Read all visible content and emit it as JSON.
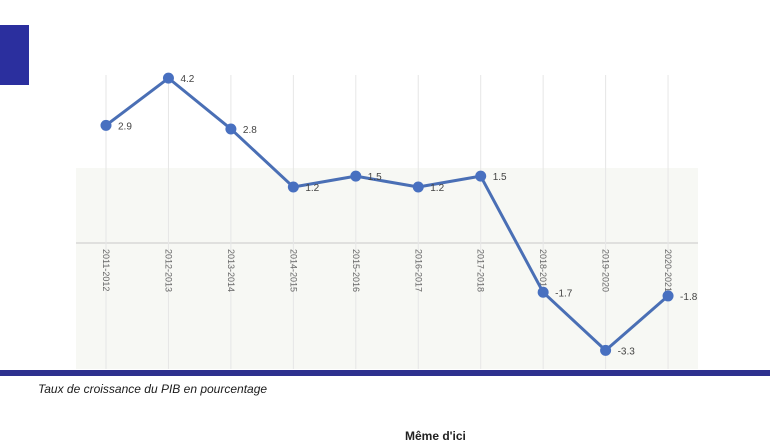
{
  "caption": "Taux de croissance du PIB en pourcentage",
  "footer_fragment": "Même d'ici",
  "colors": {
    "accent": "#2b2f9e",
    "rule": "#2e318f",
    "line": "#4a6fb5",
    "point": "#4870c0",
    "plot_bg": "#f7f8f4"
  },
  "chart_data": {
    "type": "line",
    "title": "",
    "xlabel": "",
    "ylabel": "",
    "categories": [
      "2011-2012",
      "2012-2013",
      "2013-2014",
      "2014-2015",
      "2015-2016",
      "2016-2017",
      "2017-2018",
      "2018-2019",
      "2019-2020",
      "2020-2021"
    ],
    "series": [
      {
        "values": [
          2.9,
          4.2,
          2.8,
          1.2,
          1.5,
          1.2,
          1.5,
          -1.7,
          -3.3,
          -1.8
        ]
      }
    ],
    "data_labels": [
      "2.9",
      "4.2",
      "2.8",
      "1.2",
      "1.5",
      "1.2",
      "1.5",
      "-1.7",
      "-3.3",
      "-1.8"
    ],
    "ylim": [
      -3.4,
      4.7
    ],
    "grid": "vertical",
    "legend": "none"
  }
}
